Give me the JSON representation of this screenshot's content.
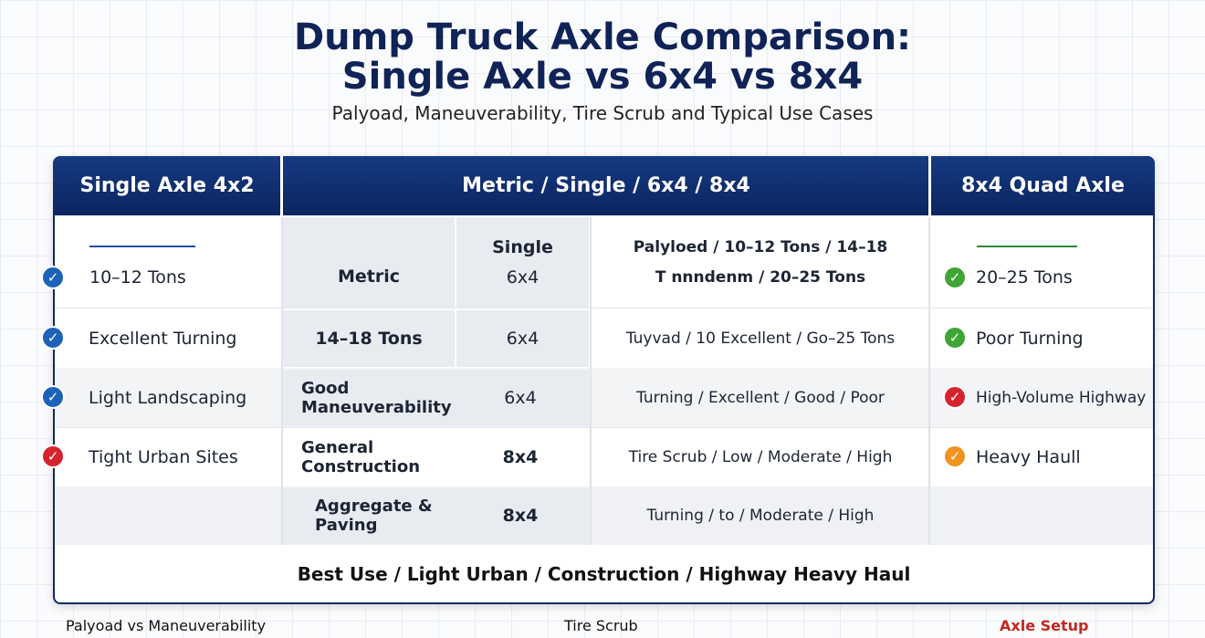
{
  "title": [
    "Dump Truck Axle Comparison:",
    "Single Axle vs 6x4 vs 8x4"
  ],
  "subtitle": "Palyoad, Maneuverability, Tire Scrub and Typical Use Cases",
  "table": {
    "headers": [
      "Single Axle 4x2",
      "Metric / Single / 6x4 / 8x4",
      "8x4 Quad Axle"
    ],
    "left": [
      "10–12 Tons",
      "Excellent Turning",
      "Light Landscaping",
      "Tight Urban Sites"
    ],
    "middle": [
      [
        "Metric",
        "Single",
        "6x4",
        "Palyloed / 10–12 Tons / 14–18",
        "T nnndenm / 20–25 Tons"
      ],
      [
        "14–18 Tons",
        "6x4",
        "Tuyvad / 10 Excellent / Go–25 Tons"
      ],
      [
        "Good Maneuverability",
        "6x4",
        "Turning / Excellent / Good / Poor"
      ],
      [
        "General Construction",
        "8x4",
        "Tire Scrub / Low / Moderate / High"
      ],
      [
        "Aggregate & Paving",
        "8x4",
        "Turning / to / Moderate / High"
      ]
    ],
    "right": [
      "20–25 Tons",
      "Poor Turning",
      "High-Volume Highway",
      "Heavy Haull"
    ],
    "footer": "Best Use / Light Urban / Construction / Highway Heavy Haul"
  },
  "bottom_labels": [
    "Palyoad vs Maneuverability",
    "Tire Scrub",
    "Axle Setup"
  ]
}
